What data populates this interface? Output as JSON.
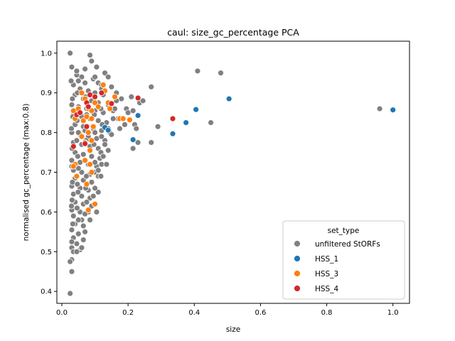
{
  "chart_data": {
    "type": "scatter",
    "title": "caul: size_gc_percentage PCA",
    "xlabel": "size",
    "ylabel": "normalised gc_percentage (max:0.8)",
    "xlim": [
      -0.015,
      1.05
    ],
    "ylim": [
      0.37,
      1.03
    ],
    "x_ticks": [
      "0.0",
      "0.2",
      "0.4",
      "0.6",
      "0.8",
      "1.0"
    ],
    "x_tick_values": [
      0.0,
      0.2,
      0.4,
      0.6,
      0.8,
      1.0
    ],
    "y_ticks": [
      "0.4",
      "0.5",
      "0.6",
      "0.7",
      "0.8",
      "0.9",
      "1.0"
    ],
    "y_tick_values": [
      0.4,
      0.5,
      0.6,
      0.7,
      0.8,
      0.9,
      1.0
    ],
    "grid": false,
    "legend": {
      "title": "set_type",
      "placement": "lower-right"
    },
    "series": [
      {
        "name": "unfiltered StORFs",
        "color": "#808080",
        "points": [
          [
            0.025,
            1.0
          ],
          [
            0.085,
            0.995
          ],
          [
            0.09,
            0.98
          ],
          [
            0.03,
            0.965
          ],
          [
            0.105,
            0.965
          ],
          [
            0.07,
            0.96
          ],
          [
            0.13,
            0.95
          ],
          [
            0.045,
            0.945
          ],
          [
            0.06,
            0.94
          ],
          [
            0.095,
            0.935
          ],
          [
            0.11,
            0.925
          ],
          [
            0.14,
            0.94
          ],
          [
            0.12,
            0.92
          ],
          [
            0.15,
            0.915
          ],
          [
            0.035,
            0.92
          ],
          [
            0.055,
            0.91
          ],
          [
            0.08,
            0.905
          ],
          [
            0.1,
            0.9
          ],
          [
            0.125,
            0.895
          ],
          [
            0.165,
            0.9
          ],
          [
            0.04,
            0.895
          ],
          [
            0.065,
            0.885
          ],
          [
            0.09,
            0.88
          ],
          [
            0.11,
            0.875
          ],
          [
            0.14,
            0.87
          ],
          [
            0.03,
            0.87
          ],
          [
            0.05,
            0.865
          ],
          [
            0.075,
            0.86
          ],
          [
            0.1,
            0.855
          ],
          [
            0.125,
            0.85
          ],
          [
            0.155,
            0.855
          ],
          [
            0.035,
            0.845
          ],
          [
            0.06,
            0.84
          ],
          [
            0.085,
            0.835
          ],
          [
            0.11,
            0.83
          ],
          [
            0.135,
            0.825
          ],
          [
            0.04,
            0.82
          ],
          [
            0.065,
            0.815
          ],
          [
            0.095,
            0.81
          ],
          [
            0.12,
            0.805
          ],
          [
            0.145,
            0.8
          ],
          [
            0.03,
            0.8
          ],
          [
            0.055,
            0.795
          ],
          [
            0.08,
            0.79
          ],
          [
            0.105,
            0.785
          ],
          [
            0.13,
            0.78
          ],
          [
            0.035,
            0.775
          ],
          [
            0.06,
            0.77
          ],
          [
            0.085,
            0.765
          ],
          [
            0.11,
            0.76
          ],
          [
            0.14,
            0.755
          ],
          [
            0.04,
            0.75
          ],
          [
            0.065,
            0.745
          ],
          [
            0.09,
            0.74
          ],
          [
            0.115,
            0.735
          ],
          [
            0.03,
            0.73
          ],
          [
            0.055,
            0.725
          ],
          [
            0.08,
            0.72
          ],
          [
            0.105,
            0.715
          ],
          [
            0.035,
            0.705
          ],
          [
            0.06,
            0.7
          ],
          [
            0.085,
            0.695
          ],
          [
            0.11,
            0.69
          ],
          [
            0.04,
            0.685
          ],
          [
            0.065,
            0.68
          ],
          [
            0.09,
            0.675
          ],
          [
            0.03,
            0.665
          ],
          [
            0.055,
            0.66
          ],
          [
            0.08,
            0.655
          ],
          [
            0.11,
            0.65
          ],
          [
            0.035,
            0.645
          ],
          [
            0.06,
            0.64
          ],
          [
            0.085,
            0.635
          ],
          [
            0.04,
            0.625
          ],
          [
            0.065,
            0.62
          ],
          [
            0.09,
            0.615
          ],
          [
            0.03,
            0.605
          ],
          [
            0.055,
            0.6
          ],
          [
            0.08,
            0.6
          ],
          [
            0.035,
            0.59
          ],
          [
            0.06,
            0.58
          ],
          [
            0.04,
            0.57
          ],
          [
            0.065,
            0.565
          ],
          [
            0.03,
            0.555
          ],
          [
            0.05,
            0.545
          ],
          [
            0.035,
            0.535
          ],
          [
            0.065,
            0.53
          ],
          [
            0.045,
            0.52
          ],
          [
            0.03,
            0.51
          ],
          [
            0.055,
            0.505
          ],
          [
            0.035,
            0.5
          ],
          [
            0.03,
            0.48
          ],
          [
            0.025,
            0.475
          ],
          [
            0.03,
            0.45
          ],
          [
            0.025,
            0.395
          ],
          [
            0.028,
            0.93
          ],
          [
            0.032,
            0.885
          ],
          [
            0.033,
            0.84
          ],
          [
            0.029,
            0.81
          ],
          [
            0.031,
            0.76
          ],
          [
            0.03,
            0.715
          ],
          [
            0.032,
            0.675
          ],
          [
            0.031,
            0.63
          ],
          [
            0.029,
            0.615
          ],
          [
            0.033,
            0.57
          ],
          [
            0.03,
            0.525
          ],
          [
            0.045,
            0.955
          ],
          [
            0.05,
            0.93
          ],
          [
            0.047,
            0.9
          ],
          [
            0.048,
            0.86
          ],
          [
            0.046,
            0.83
          ],
          [
            0.05,
            0.8
          ],
          [
            0.045,
            0.78
          ],
          [
            0.048,
            0.74
          ],
          [
            0.05,
            0.71
          ],
          [
            0.047,
            0.67
          ],
          [
            0.049,
            0.65
          ],
          [
            0.046,
            0.61
          ],
          [
            0.05,
            0.58
          ],
          [
            0.07,
            0.925
          ],
          [
            0.072,
            0.89
          ],
          [
            0.075,
            0.845
          ],
          [
            0.07,
            0.805
          ],
          [
            0.073,
            0.78
          ],
          [
            0.071,
            0.73
          ],
          [
            0.074,
            0.69
          ],
          [
            0.072,
            0.66
          ],
          [
            0.075,
            0.625
          ],
          [
            0.07,
            0.595
          ],
          [
            0.1,
            0.94
          ],
          [
            0.1,
            0.89
          ],
          [
            0.098,
            0.845
          ],
          [
            0.1,
            0.8
          ],
          [
            0.097,
            0.77
          ],
          [
            0.1,
            0.725
          ],
          [
            0.098,
            0.7
          ],
          [
            0.1,
            0.66
          ],
          [
            0.12,
            0.91
          ],
          [
            0.118,
            0.86
          ],
          [
            0.122,
            0.82
          ],
          [
            0.12,
            0.79
          ],
          [
            0.118,
            0.75
          ],
          [
            0.12,
            0.72
          ],
          [
            0.118,
            0.69
          ],
          [
            0.16,
            0.86
          ],
          [
            0.17,
            0.835
          ],
          [
            0.175,
            0.81
          ],
          [
            0.18,
            0.885
          ],
          [
            0.19,
            0.82
          ],
          [
            0.195,
            0.86
          ],
          [
            0.2,
            0.85
          ],
          [
            0.21,
            0.89
          ],
          [
            0.215,
            0.855
          ],
          [
            0.22,
            0.82
          ],
          [
            0.225,
            0.81
          ],
          [
            0.235,
            0.875
          ],
          [
            0.245,
            0.88
          ],
          [
            0.215,
            0.76
          ],
          [
            0.23,
            0.775
          ],
          [
            0.27,
            0.915
          ],
          [
            0.27,
            0.775
          ],
          [
            0.29,
            0.815
          ],
          [
            0.41,
            0.955
          ],
          [
            0.48,
            0.95
          ],
          [
            0.45,
            0.825
          ],
          [
            0.96,
            0.86
          ],
          [
            0.155,
            0.835
          ],
          [
            0.165,
            0.88
          ],
          [
            0.14,
            0.81
          ],
          [
            0.15,
            0.795
          ],
          [
            0.13,
            0.77
          ],
          [
            0.125,
            0.74
          ],
          [
            0.135,
            0.72
          ],
          [
            0.11,
            0.705
          ],
          [
            0.095,
            0.64
          ],
          [
            0.105,
            0.6
          ],
          [
            0.085,
            0.58
          ],
          [
            0.07,
            0.55
          ],
          [
            0.06,
            0.51
          ],
          [
            0.045,
            0.5
          ]
        ]
      },
      {
        "name": "HSS_1",
        "color": "#1f77b4",
        "points": [
          [
            0.505,
            0.885
          ],
          [
            0.405,
            0.858
          ],
          [
            0.375,
            0.825
          ],
          [
            0.335,
            0.797
          ],
          [
            0.215,
            0.782
          ],
          [
            0.23,
            0.843
          ],
          [
            0.13,
            0.813
          ],
          [
            0.14,
            0.806
          ],
          [
            1.0,
            0.857
          ]
        ]
      },
      {
        "name": "HSS_3",
        "color": "#ff7f0e",
        "points": [
          [
            0.035,
            0.855
          ],
          [
            0.05,
            0.86
          ],
          [
            0.06,
            0.9
          ],
          [
            0.07,
            0.885
          ],
          [
            0.08,
            0.86
          ],
          [
            0.09,
            0.855
          ],
          [
            0.1,
            0.875
          ],
          [
            0.11,
            0.865
          ],
          [
            0.125,
            0.92
          ],
          [
            0.13,
            0.905
          ],
          [
            0.14,
            0.875
          ],
          [
            0.145,
            0.86
          ],
          [
            0.16,
            0.89
          ],
          [
            0.175,
            0.835
          ],
          [
            0.185,
            0.835
          ],
          [
            0.205,
            0.832
          ],
          [
            0.04,
            0.835
          ],
          [
            0.065,
            0.83
          ],
          [
            0.075,
            0.84
          ],
          [
            0.09,
            0.835
          ],
          [
            0.06,
            0.79
          ],
          [
            0.08,
            0.8
          ],
          [
            0.095,
            0.815
          ],
          [
            0.07,
            0.775
          ],
          [
            0.085,
            0.755
          ],
          [
            0.09,
            0.78
          ],
          [
            0.04,
            0.72
          ],
          [
            0.045,
            0.69
          ],
          [
            0.07,
            0.73
          ],
          [
            0.085,
            0.72
          ],
          [
            0.09,
            0.7
          ],
          [
            0.075,
            0.67
          ],
          [
            0.08,
            0.605
          ],
          [
            0.1,
            0.62
          ],
          [
            0.035,
            0.715
          ]
        ]
      },
      {
        "name": "HSS_4",
        "color": "#d62728",
        "points": [
          [
            0.045,
            0.845
          ],
          [
            0.055,
            0.85
          ],
          [
            0.075,
            0.875
          ],
          [
            0.08,
            0.865
          ],
          [
            0.085,
            0.895
          ],
          [
            0.1,
            0.89
          ],
          [
            0.12,
            0.9
          ],
          [
            0.15,
            0.873
          ],
          [
            0.075,
            0.815
          ],
          [
            0.07,
            0.772
          ],
          [
            0.035,
            0.765
          ],
          [
            0.23,
            0.887
          ],
          [
            0.335,
            0.835
          ]
        ]
      }
    ]
  }
}
